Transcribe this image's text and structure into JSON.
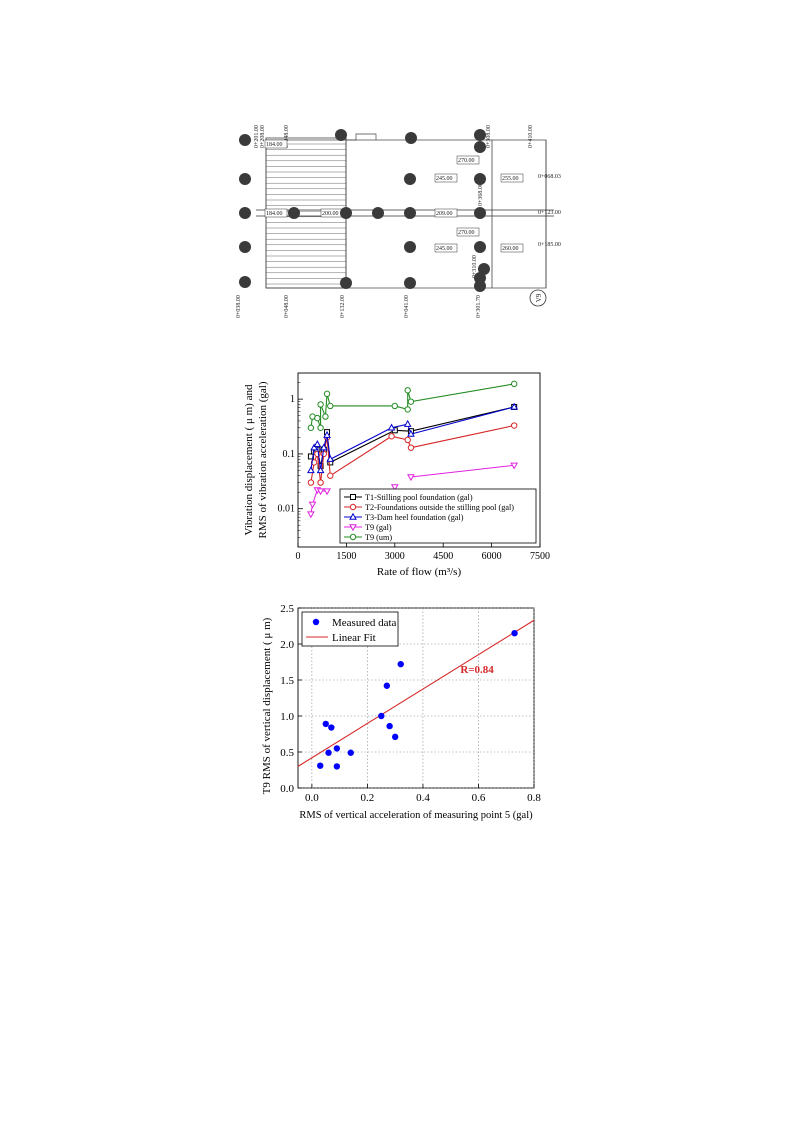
{
  "plan": {
    "top_labels": [
      "0+201.00",
      "0+208.00",
      "0+048.00",
      "0+308.00",
      "0+410.00"
    ],
    "bottom_labels": [
      "0+038.00",
      "0+048.00",
      "0+132.00",
      "0+041.00",
      "0+301.70"
    ],
    "inner_labels": [
      "0+368.00",
      "0+310.00"
    ],
    "right_labels": [
      "0+068.03",
      "0+123.00",
      "0+185.00"
    ],
    "box_labels": [
      "184.00",
      "270.00",
      "245.00",
      "255.00",
      "184.00",
      "200.00",
      "209.00",
      "270.00",
      "245.00",
      "260.00"
    ],
    "badge": "V9",
    "dots": 23
  },
  "chart_data": [
    {
      "type": "line",
      "xlabel": "Rate of flow (m³/s)",
      "ylabel_line1": "Vibration displacement ( μ m) and",
      "ylabel_line2": "RMS of vibration acceleration (gal)",
      "yscale": "log",
      "xlim": [
        0,
        7500
      ],
      "ylim": [
        0.002,
        3
      ],
      "x_ticks": [
        "0",
        "1500",
        "3000",
        "4500",
        "6000",
        "7500"
      ],
      "y_ticks": [
        "0.01",
        "0.1",
        "1"
      ],
      "legend_position": "bottom-right",
      "series": [
        {
          "name": "T1-Stilling pool foundation (gal)",
          "color": "#000000",
          "marker": "square",
          "points": [
            [
              400,
              0.09
            ],
            [
              500,
              0.11
            ],
            [
              600,
              0.12
            ],
            [
              700,
              0.06
            ],
            [
              800,
              0.12
            ],
            [
              900,
              0.25
            ],
            [
              1000,
              0.07
            ],
            [
              3000,
              0.27
            ],
            [
              3500,
              0.26
            ],
            [
              6700,
              0.72
            ]
          ]
        },
        {
          "name": "T2-Foundations outside the stilling pool (gal)",
          "color": "#d62728",
          "marker": "circle",
          "points": [
            [
              400,
              0.03
            ],
            [
              500,
              0.07
            ],
            [
              600,
              0.1
            ],
            [
              700,
              0.03
            ],
            [
              800,
              0.1
            ],
            [
              900,
              0.2
            ],
            [
              1000,
              0.04
            ],
            [
              2900,
              0.21
            ],
            [
              3400,
              0.18
            ],
            [
              3500,
              0.13
            ],
            [
              6700,
              0.33
            ]
          ]
        },
        {
          "name": "T3-Dam heel foundation (gal)",
          "color": "#0000cc",
          "marker": "triangle-up",
          "points": [
            [
              400,
              0.05
            ],
            [
              500,
              0.13
            ],
            [
              600,
              0.15
            ],
            [
              700,
              0.05
            ],
            [
              800,
              0.13
            ],
            [
              900,
              0.22
            ],
            [
              1000,
              0.08
            ],
            [
              2900,
              0.3
            ],
            [
              3400,
              0.35
            ],
            [
              3500,
              0.23
            ],
            [
              6700,
              0.72
            ]
          ]
        },
        {
          "name": "T9 (gal)",
          "color": "#e020e0",
          "marker": "triangle-down",
          "points": [
            [
              400,
              0.008
            ],
            [
              450,
              0.012
            ],
            [
              600,
              0.022
            ],
            [
              700,
              0.021
            ],
            [
              900,
              0.021
            ],
            [
              3000,
              0.025
            ],
            [
              3500,
              0.038
            ],
            [
              6700,
              0.062
            ]
          ]
        },
        {
          "name": "T9 (um)",
          "color": "#228b22",
          "marker": "circle",
          "points": [
            [
              400,
              0.3
            ],
            [
              450,
              0.48
            ],
            [
              600,
              0.45
            ],
            [
              700,
              0.3
            ],
            [
              700,
              0.8
            ],
            [
              850,
              0.48
            ],
            [
              900,
              1.25
            ],
            [
              1000,
              0.75
            ],
            [
              3000,
              0.75
            ],
            [
              3400,
              0.65
            ],
            [
              3400,
              1.45
            ],
            [
              3500,
              0.9
            ],
            [
              6700,
              1.9
            ]
          ]
        }
      ]
    },
    {
      "type": "scatter",
      "xlabel": "RMS of vertical acceleration of  measuring point 5 (gal)",
      "ylabel": "T9 RMS of vertical displacement ( μ m)",
      "xlim": [
        -0.05,
        0.8
      ],
      "ylim": [
        0,
        2.5
      ],
      "x_ticks": [
        "0.0",
        "0.2",
        "0.4",
        "0.6",
        "0.8"
      ],
      "y_ticks": [
        "0.0",
        "0.5",
        "1.0",
        "1.5",
        "2.0",
        "2.5"
      ],
      "legend": [
        "Measured data",
        "Linear Fit"
      ],
      "annotation": "R=0.84",
      "points": [
        [
          0.03,
          0.31
        ],
        [
          0.05,
          0.89
        ],
        [
          0.06,
          0.49
        ],
        [
          0.07,
          0.84
        ],
        [
          0.09,
          0.55
        ],
        [
          0.09,
          0.3
        ],
        [
          0.14,
          0.49
        ],
        [
          0.25,
          1.0
        ],
        [
          0.27,
          1.42
        ],
        [
          0.28,
          0.86
        ],
        [
          0.3,
          0.71
        ],
        [
          0.32,
          1.72
        ],
        [
          0.73,
          2.15
        ]
      ],
      "fit": {
        "x": [
          -0.05,
          0.8
        ],
        "y": [
          0.3,
          2.33
        ]
      },
      "colors": {
        "points": "#0000ff",
        "fit": "#d62728",
        "annotation": "#d62728"
      }
    }
  ]
}
